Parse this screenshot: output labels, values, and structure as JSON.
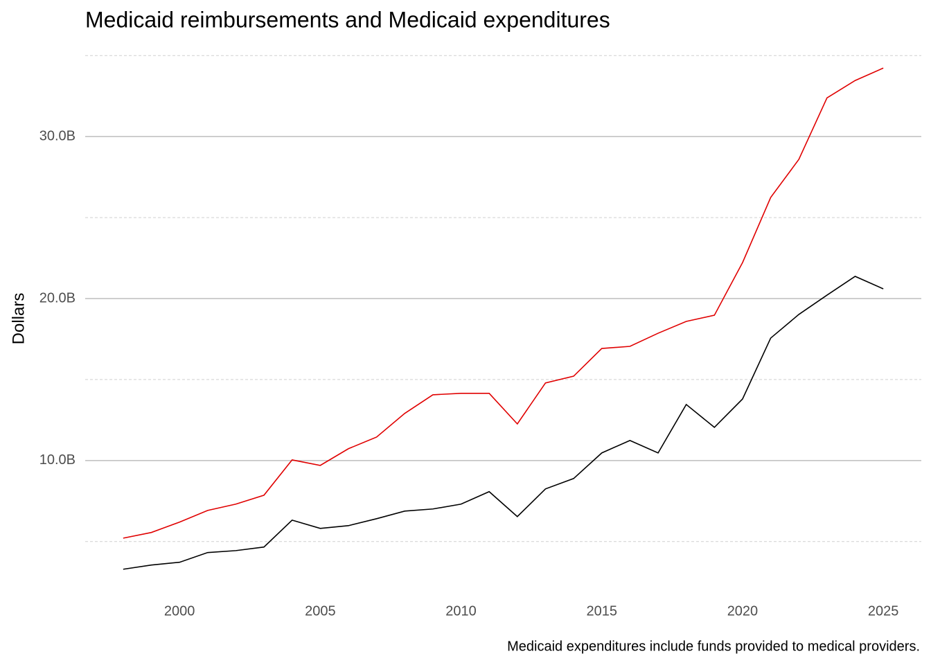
{
  "chart_data": {
    "type": "line",
    "title": "Medicaid reimbursements and Medicaid expenditures",
    "y_label": "Dollars",
    "caption": "Medicaid expenditures include funds provided to medical providers.",
    "x": [
      1998,
      1999,
      2000,
      2001,
      2002,
      2003,
      2004,
      2005,
      2006,
      2007,
      2008,
      2009,
      2010,
      2011,
      2012,
      2013,
      2014,
      2015,
      2016,
      2017,
      2018,
      2019,
      2020,
      2021,
      2022,
      2023,
      2024,
      2025
    ],
    "series": [
      {
        "color": "#e00000",
        "values": [
          5210000000,
          5560000000,
          6200000000,
          6920000000,
          7310000000,
          7860000000,
          10040000000,
          9700000000,
          10730000000,
          11450000000,
          12910000000,
          14060000000,
          14150000000,
          14150000000,
          12260000000,
          14790000000,
          15210000000,
          16920000000,
          17050000000,
          17860000000,
          18590000000,
          18970000000,
          22220000000,
          26240000000,
          28590000000,
          32390000000,
          33460000000,
          34230000000
        ]
      },
      {
        "color": "#000000",
        "values": [
          3290000000,
          3550000000,
          3720000000,
          4320000000,
          4440000000,
          4660000000,
          6320000000,
          5810000000,
          5980000000,
          6410000000,
          6880000000,
          7010000000,
          7310000000,
          8080000000,
          6540000000,
          8250000000,
          8890000000,
          10470000000,
          11240000000,
          10470000000,
          13460000000,
          12050000000,
          13800000000,
          17560000000,
          19020000000,
          20210000000,
          21370000000,
          20600000000
        ]
      }
    ],
    "xlim": [
      1996.65,
      2026.35
    ],
    "xticks": [
      2000,
      2005,
      2010,
      2015,
      2020,
      2025
    ],
    "ylim": [
      1740000000,
      35780000000
    ],
    "yticks": [
      {
        "value": 10000000000,
        "label": "10.0B"
      },
      {
        "value": 20000000000,
        "label": "20.0B"
      },
      {
        "value": 30000000000,
        "label": "30.0B"
      }
    ],
    "yticks_minor": [
      5000000000,
      15000000000,
      25000000000,
      35000000000
    ],
    "grid": true
  }
}
